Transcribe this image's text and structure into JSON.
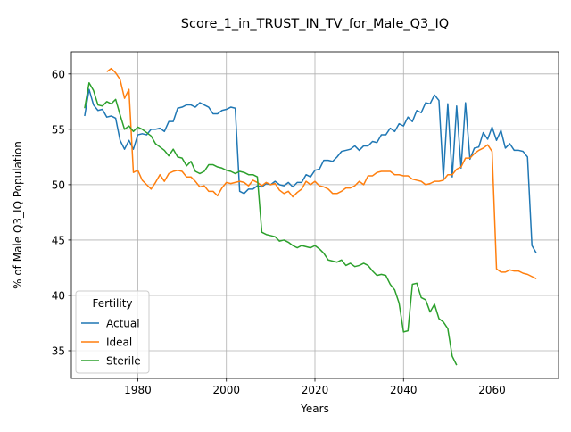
{
  "chart_data": {
    "type": "line",
    "title": "Score_1_in_TRUST_IN_TV_for_Male_Q3_IQ",
    "xlabel": "Years",
    "ylabel": "% of Male Q3_IQ Population",
    "xlim": [
      1965,
      2075
    ],
    "ylim": [
      32.5,
      62
    ],
    "xticks": [
      1980,
      2000,
      2020,
      2040,
      2060
    ],
    "yticks": [
      35,
      40,
      45,
      50,
      55,
      60
    ],
    "grid": true,
    "legend": {
      "title": "Fertility",
      "position": "lower-left"
    },
    "series": [
      {
        "name": "Actual",
        "color": "#1f77b4",
        "points": [
          [
            1968,
            56.2
          ],
          [
            1969,
            58.6
          ],
          [
            1970,
            57.2
          ],
          [
            1971,
            56.7
          ],
          [
            1972,
            56.8
          ],
          [
            1973,
            56.1
          ],
          [
            1974,
            56.2
          ],
          [
            1975,
            56.0
          ],
          [
            1976,
            54.0
          ],
          [
            1977,
            53.2
          ],
          [
            1978,
            54.0
          ],
          [
            1979,
            53.2
          ],
          [
            1980,
            54.5
          ],
          [
            1981,
            54.6
          ],
          [
            1982,
            54.5
          ],
          [
            1983,
            55.0
          ],
          [
            1984,
            55.0
          ],
          [
            1985,
            55.1
          ],
          [
            1986,
            54.8
          ],
          [
            1987,
            55.7
          ],
          [
            1988,
            55.7
          ],
          [
            1989,
            56.9
          ],
          [
            1990,
            57.0
          ],
          [
            1991,
            57.2
          ],
          [
            1992,
            57.2
          ],
          [
            1993,
            57.0
          ],
          [
            1994,
            57.4
          ],
          [
            1995,
            57.2
          ],
          [
            1996,
            57.0
          ],
          [
            1997,
            56.4
          ],
          [
            1998,
            56.4
          ],
          [
            1999,
            56.7
          ],
          [
            2000,
            56.8
          ],
          [
            2001,
            57.0
          ],
          [
            2002,
            56.9
          ],
          [
            2003,
            49.4
          ],
          [
            2004,
            49.2
          ],
          [
            2005,
            49.6
          ],
          [
            2006,
            49.6
          ],
          [
            2007,
            49.9
          ],
          [
            2008,
            49.8
          ],
          [
            2009,
            50.1
          ],
          [
            2010,
            50.0
          ],
          [
            2011,
            50.3
          ],
          [
            2012,
            50.0
          ],
          [
            2013,
            49.9
          ],
          [
            2014,
            50.2
          ],
          [
            2015,
            49.8
          ],
          [
            2016,
            50.2
          ],
          [
            2017,
            50.2
          ],
          [
            2018,
            50.9
          ],
          [
            2019,
            50.7
          ],
          [
            2020,
            51.3
          ],
          [
            2021,
            51.4
          ],
          [
            2022,
            52.2
          ],
          [
            2023,
            52.2
          ],
          [
            2024,
            52.1
          ],
          [
            2025,
            52.5
          ],
          [
            2026,
            53.0
          ],
          [
            2027,
            53.1
          ],
          [
            2028,
            53.2
          ],
          [
            2029,
            53.5
          ],
          [
            2030,
            53.1
          ],
          [
            2031,
            53.5
          ],
          [
            2032,
            53.5
          ],
          [
            2033,
            53.9
          ],
          [
            2034,
            53.8
          ],
          [
            2035,
            54.5
          ],
          [
            2036,
            54.5
          ],
          [
            2037,
            55.1
          ],
          [
            2038,
            54.8
          ],
          [
            2039,
            55.5
          ],
          [
            2040,
            55.3
          ],
          [
            2041,
            56.1
          ],
          [
            2042,
            55.7
          ],
          [
            2043,
            56.7
          ],
          [
            2044,
            56.5
          ],
          [
            2045,
            57.4
          ],
          [
            2046,
            57.3
          ],
          [
            2047,
            58.1
          ],
          [
            2048,
            57.6
          ],
          [
            2049,
            50.6
          ],
          [
            2050,
            57.3
          ],
          [
            2051,
            50.7
          ],
          [
            2052,
            57.1
          ],
          [
            2053,
            51.5
          ],
          [
            2054,
            57.4
          ],
          [
            2055,
            52.3
          ],
          [
            2056,
            53.3
          ],
          [
            2057,
            53.4
          ],
          [
            2058,
            54.7
          ],
          [
            2059,
            54.1
          ],
          [
            2060,
            55.2
          ],
          [
            2061,
            54.0
          ],
          [
            2062,
            54.9
          ],
          [
            2063,
            53.3
          ],
          [
            2064,
            53.7
          ],
          [
            2065,
            53.1
          ],
          [
            2066,
            53.1
          ],
          [
            2067,
            53.0
          ],
          [
            2068,
            52.5
          ],
          [
            2069,
            44.5
          ],
          [
            2070,
            43.8
          ]
        ]
      },
      {
        "name": "Ideal",
        "color": "#ff7f0e",
        "points": [
          [
            1973,
            60.2
          ],
          [
            1974,
            60.5
          ],
          [
            1975,
            60.1
          ],
          [
            1976,
            59.5
          ],
          [
            1977,
            57.8
          ],
          [
            1978,
            58.6
          ],
          [
            1979,
            51.1
          ],
          [
            1980,
            51.3
          ],
          [
            1981,
            50.4
          ],
          [
            1982,
            50.0
          ],
          [
            1983,
            49.6
          ],
          [
            1984,
            50.2
          ],
          [
            1985,
            50.9
          ],
          [
            1986,
            50.3
          ],
          [
            1987,
            51.0
          ],
          [
            1988,
            51.2
          ],
          [
            1989,
            51.3
          ],
          [
            1990,
            51.2
          ],
          [
            1991,
            50.7
          ],
          [
            1992,
            50.7
          ],
          [
            1993,
            50.3
          ],
          [
            1994,
            49.8
          ],
          [
            1995,
            49.9
          ],
          [
            1996,
            49.4
          ],
          [
            1997,
            49.4
          ],
          [
            1998,
            49.0
          ],
          [
            1999,
            49.7
          ],
          [
            2000,
            50.2
          ],
          [
            2001,
            50.1
          ],
          [
            2002,
            50.2
          ],
          [
            2003,
            50.3
          ],
          [
            2004,
            50.2
          ],
          [
            2005,
            49.9
          ],
          [
            2006,
            50.4
          ],
          [
            2007,
            50.2
          ],
          [
            2008,
            49.9
          ],
          [
            2009,
            50.2
          ],
          [
            2010,
            50.0
          ],
          [
            2011,
            50.1
          ],
          [
            2012,
            49.5
          ],
          [
            2013,
            49.2
          ],
          [
            2014,
            49.4
          ],
          [
            2015,
            48.9
          ],
          [
            2016,
            49.3
          ],
          [
            2017,
            49.6
          ],
          [
            2018,
            50.3
          ],
          [
            2019,
            50.0
          ],
          [
            2020,
            50.3
          ],
          [
            2021,
            49.9
          ],
          [
            2022,
            49.8
          ],
          [
            2023,
            49.6
          ],
          [
            2024,
            49.2
          ],
          [
            2025,
            49.2
          ],
          [
            2026,
            49.4
          ],
          [
            2027,
            49.7
          ],
          [
            2028,
            49.7
          ],
          [
            2029,
            49.9
          ],
          [
            2030,
            50.3
          ],
          [
            2031,
            50.0
          ],
          [
            2032,
            50.8
          ],
          [
            2033,
            50.8
          ],
          [
            2034,
            51.1
          ],
          [
            2035,
            51.2
          ],
          [
            2036,
            51.2
          ],
          [
            2037,
            51.2
          ],
          [
            2038,
            50.9
          ],
          [
            2039,
            50.9
          ],
          [
            2040,
            50.8
          ],
          [
            2041,
            50.8
          ],
          [
            2042,
            50.5
          ],
          [
            2043,
            50.4
          ],
          [
            2044,
            50.3
          ],
          [
            2045,
            50.0
          ],
          [
            2046,
            50.1
          ],
          [
            2047,
            50.3
          ],
          [
            2048,
            50.3
          ],
          [
            2049,
            50.4
          ],
          [
            2050,
            50.9
          ],
          [
            2051,
            50.9
          ],
          [
            2052,
            51.4
          ],
          [
            2053,
            51.6
          ],
          [
            2054,
            52.4
          ],
          [
            2055,
            52.4
          ],
          [
            2056,
            52.8
          ],
          [
            2057,
            53.1
          ],
          [
            2058,
            53.3
          ],
          [
            2059,
            53.6
          ],
          [
            2060,
            53.0
          ],
          [
            2061,
            42.4
          ],
          [
            2062,
            42.1
          ],
          [
            2063,
            42.1
          ],
          [
            2064,
            42.3
          ],
          [
            2065,
            42.2
          ],
          [
            2066,
            42.2
          ],
          [
            2067,
            42.0
          ],
          [
            2068,
            41.9
          ],
          [
            2069,
            41.7
          ],
          [
            2070,
            41.5
          ]
        ]
      },
      {
        "name": "Sterile",
        "color": "#2ca02c",
        "points": [
          [
            1968,
            56.9
          ],
          [
            1969,
            59.2
          ],
          [
            1970,
            58.5
          ],
          [
            1971,
            57.2
          ],
          [
            1972,
            57.1
          ],
          [
            1973,
            57.5
          ],
          [
            1974,
            57.3
          ],
          [
            1975,
            57.7
          ],
          [
            1976,
            56.3
          ],
          [
            1977,
            55.0
          ],
          [
            1978,
            55.3
          ],
          [
            1979,
            54.8
          ],
          [
            1980,
            55.2
          ],
          [
            1981,
            55.0
          ],
          [
            1982,
            54.7
          ],
          [
            1983,
            54.4
          ],
          [
            1984,
            53.7
          ],
          [
            1985,
            53.4
          ],
          [
            1986,
            53.1
          ],
          [
            1987,
            52.6
          ],
          [
            1988,
            53.2
          ],
          [
            1989,
            52.5
          ],
          [
            1990,
            52.4
          ],
          [
            1991,
            51.7
          ],
          [
            1992,
            52.1
          ],
          [
            1993,
            51.2
          ],
          [
            1994,
            51.0
          ],
          [
            1995,
            51.2
          ],
          [
            1996,
            51.8
          ],
          [
            1997,
            51.8
          ],
          [
            1998,
            51.6
          ],
          [
            1999,
            51.5
          ],
          [
            2000,
            51.3
          ],
          [
            2001,
            51.2
          ],
          [
            2002,
            51.0
          ],
          [
            2003,
            51.2
          ],
          [
            2004,
            51.1
          ],
          [
            2005,
            50.9
          ],
          [
            2006,
            50.9
          ],
          [
            2007,
            50.7
          ],
          [
            2008,
            45.7
          ],
          [
            2009,
            45.5
          ],
          [
            2010,
            45.4
          ],
          [
            2011,
            45.3
          ],
          [
            2012,
            44.9
          ],
          [
            2013,
            45.0
          ],
          [
            2014,
            44.8
          ],
          [
            2015,
            44.5
          ],
          [
            2016,
            44.3
          ],
          [
            2017,
            44.5
          ],
          [
            2018,
            44.4
          ],
          [
            2019,
            44.3
          ],
          [
            2020,
            44.5
          ],
          [
            2021,
            44.2
          ],
          [
            2022,
            43.8
          ],
          [
            2023,
            43.2
          ],
          [
            2024,
            43.1
          ],
          [
            2025,
            43.0
          ],
          [
            2026,
            43.2
          ],
          [
            2027,
            42.7
          ],
          [
            2028,
            42.9
          ],
          [
            2029,
            42.6
          ],
          [
            2030,
            42.7
          ],
          [
            2031,
            42.9
          ],
          [
            2032,
            42.7
          ],
          [
            2033,
            42.2
          ],
          [
            2034,
            41.8
          ],
          [
            2035,
            41.9
          ],
          [
            2036,
            41.8
          ],
          [
            2037,
            41.0
          ],
          [
            2038,
            40.5
          ],
          [
            2039,
            39.3
          ],
          [
            2040,
            36.7
          ],
          [
            2041,
            36.8
          ],
          [
            2042,
            41.0
          ],
          [
            2043,
            41.1
          ],
          [
            2044,
            39.8
          ],
          [
            2045,
            39.6
          ],
          [
            2046,
            38.5
          ],
          [
            2047,
            39.2
          ],
          [
            2048,
            37.9
          ],
          [
            2049,
            37.6
          ],
          [
            2050,
            37.0
          ],
          [
            2051,
            34.5
          ],
          [
            2052,
            33.7
          ]
        ]
      }
    ]
  }
}
